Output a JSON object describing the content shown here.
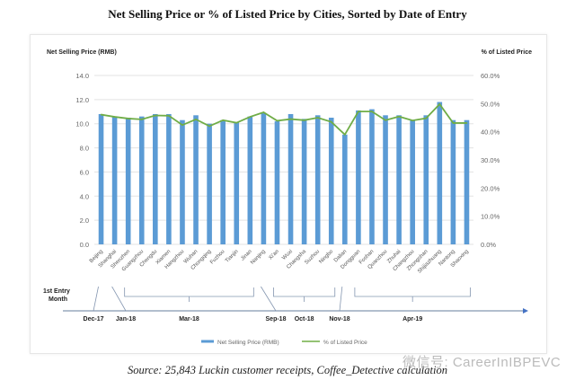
{
  "chart_data": {
    "type": "bar+line",
    "title": "Net Selling Price or % of Listed Price by Cities, Sorted by Date of Entry",
    "ylabel_left": "Net Selling Price (RMB)",
    "ylabel_right": "% of Listed Price",
    "ylim_left": [
      0,
      14
    ],
    "ylim_right": [
      0,
      60
    ],
    "yticks_left": [
      "0.0",
      "2.0",
      "4.0",
      "6.0",
      "8.0",
      "10.0",
      "12.0",
      "14.0"
    ],
    "yticks_right": [
      "0.0%",
      "10.0%",
      "20.0%",
      "30.0%",
      "40.0%",
      "50.0%",
      "60.0%"
    ],
    "grid": true,
    "legend_placement": "bottom",
    "categories": [
      "Beijing",
      "Shanghai",
      "Shenzhen",
      "Guangzhou",
      "Chengdu",
      "Xiamen",
      "Hangzhou",
      "Wuhan",
      "Chongqing",
      "Fuzhou",
      "Tianjin",
      "Jinan",
      "Nanjing",
      "Xi'an",
      "Wuxi",
      "Changsha",
      "Suzhou",
      "Ningbo",
      "Dalian",
      "Dongguan",
      "Foshan",
      "Quanzhou",
      "Zhuhai",
      "Changzhou",
      "Zhongshan",
      "Shijiazhuang",
      "Nantong",
      "Shaoxing"
    ],
    "series": [
      {
        "name": "Net Selling Price (RMB)",
        "type": "bar",
        "axis": "left",
        "color": "#5b9bd5",
        "values": [
          10.8,
          10.6,
          10.5,
          10.6,
          10.8,
          10.8,
          10.3,
          10.7,
          10.0,
          10.3,
          10.1,
          10.6,
          10.9,
          10.2,
          10.8,
          10.4,
          10.7,
          10.5,
          9.1,
          11.1,
          11.2,
          10.7,
          10.7,
          10.3,
          10.7,
          11.8,
          10.3,
          10.3
        ]
      },
      {
        "name": "% of Listed Price",
        "type": "line",
        "axis": "right",
        "color": "#70ad47",
        "values": [
          46.1,
          45.3,
          44.7,
          44.4,
          45.8,
          45.7,
          42.4,
          44.4,
          42.0,
          44.1,
          43.2,
          45.3,
          46.9,
          43.9,
          44.5,
          44.1,
          45.0,
          43.5,
          39.0,
          47.2,
          47.2,
          44.1,
          45.4,
          44.0,
          44.8,
          49.8,
          43.1,
          43.1
        ]
      }
    ],
    "timeline": {
      "label": "1st Entry Month",
      "groups": [
        {
          "month": "Dec-17",
          "first": 0,
          "last": 0
        },
        {
          "month": "Jan-18",
          "first": 1,
          "last": 1
        },
        {
          "month": "Mar-18",
          "first": 2,
          "last": 11
        },
        {
          "month": "Sep-18",
          "first": 12,
          "last": 12
        },
        {
          "month": "Oct-18",
          "first": 13,
          "last": 17
        },
        {
          "month": "Nov-18",
          "first": 18,
          "last": 18
        },
        {
          "month": "Apr-19",
          "first": 19,
          "last": 27
        }
      ]
    }
  },
  "source": "Source: 25,843 Luckin customer receipts, Coffee_Detective calculation",
  "watermark": "微信号: CareerInIBPEVC"
}
